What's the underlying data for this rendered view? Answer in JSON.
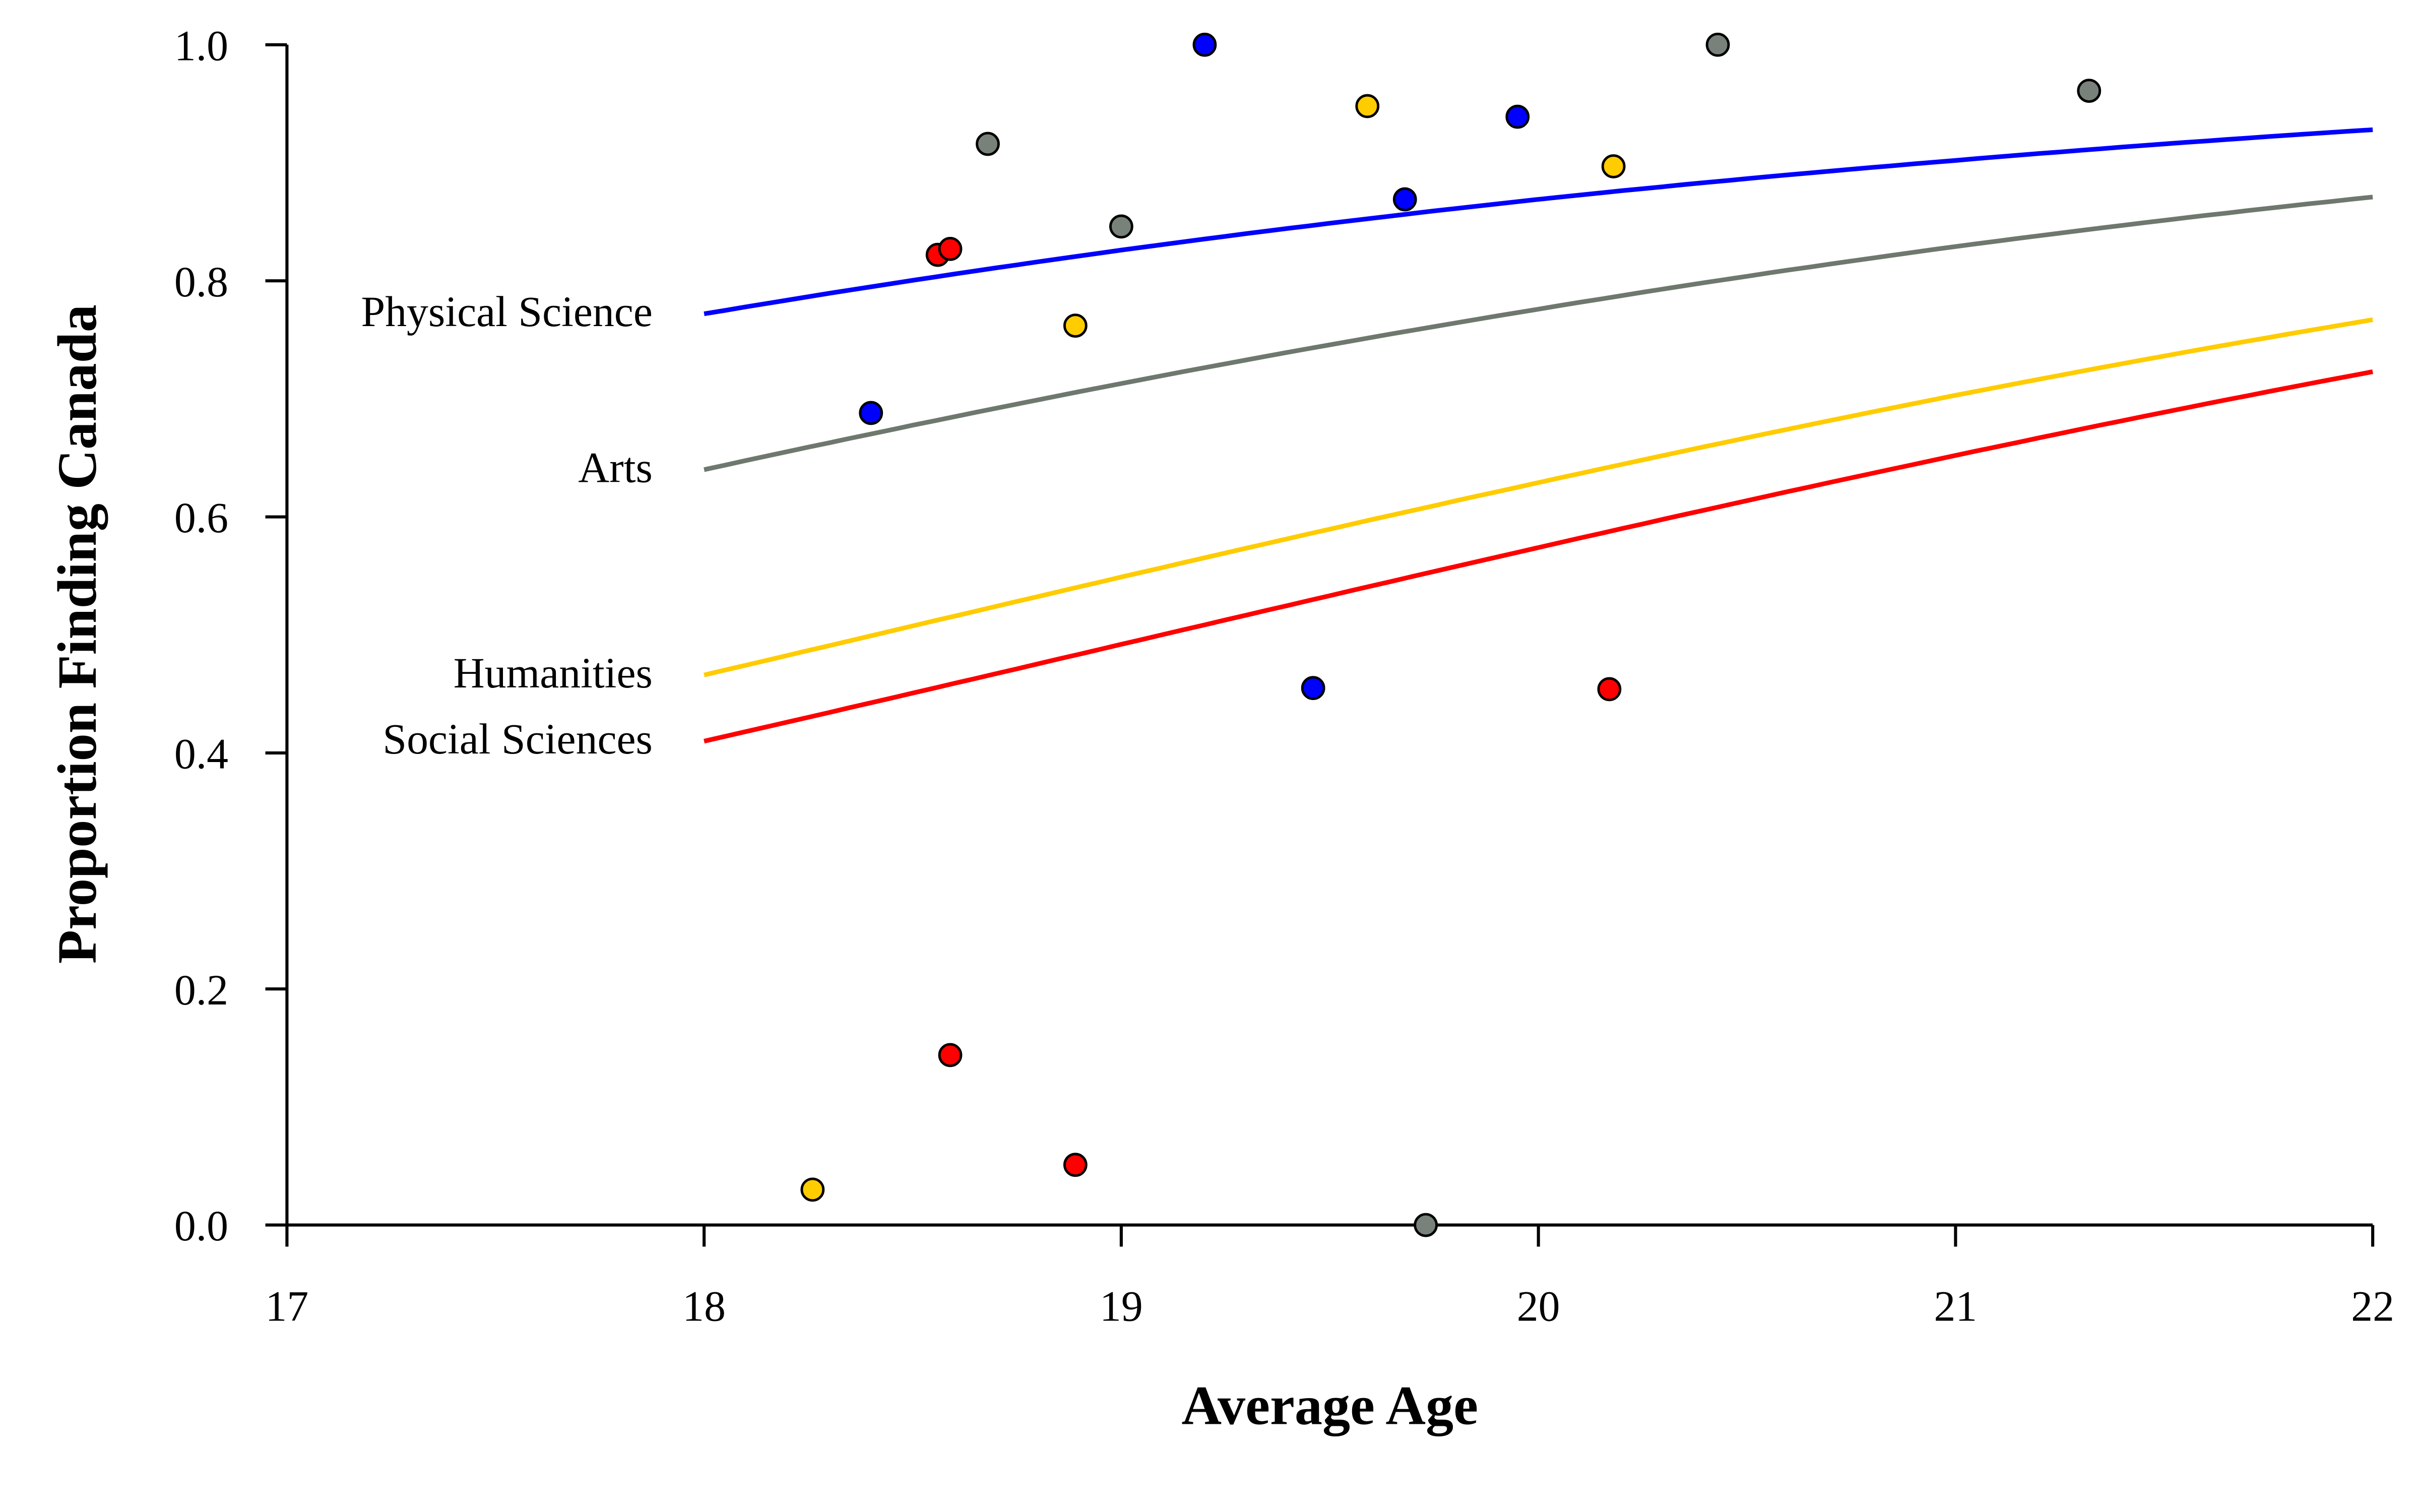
{
  "chart_data": {
    "type": "scatter",
    "title": "",
    "xlabel": "Average Age",
    "ylabel": "Proportion Finding Canada",
    "xlim": [
      17,
      22
    ],
    "ylim": [
      0,
      1
    ],
    "xticks": [
      "17",
      "18",
      "19",
      "20",
      "21",
      "22"
    ],
    "yticks": [
      "0.0",
      "0.2",
      "0.4",
      "0.6",
      "0.8",
      "1.0"
    ],
    "grid": false,
    "legend": "direct labels at left end of fitted curves",
    "series": [
      {
        "name": "Physical Science",
        "color": "#0000ff",
        "points": [
          [
            18.4,
            0.688
          ],
          [
            19.2,
            1.0
          ],
          [
            19.68,
            0.869
          ],
          [
            19.95,
            0.939
          ],
          [
            19.46,
            0.455
          ]
        ],
        "fit": {
          "x": [
            18,
            19,
            20,
            21,
            22
          ],
          "y": [
            0.772,
            0.826,
            0.869,
            0.902,
            0.928
          ]
        }
      },
      {
        "name": "Arts",
        "color": "#6e786e",
        "points": [
          [
            18.68,
            0.916
          ],
          [
            19.0,
            0.846
          ],
          [
            20.43,
            1.0
          ],
          [
            21.32,
            0.961
          ],
          [
            19.73,
            0.0
          ]
        ],
        "fit": {
          "x": [
            18,
            19,
            20,
            21,
            22
          ],
          "y": [
            0.64,
            0.713,
            0.776,
            0.829,
            0.871
          ]
        }
      },
      {
        "name": "Humanities",
        "color": "#ffcc00",
        "points": [
          [
            19.59,
            0.948
          ],
          [
            20.18,
            0.897
          ],
          [
            18.89,
            0.762
          ],
          [
            18.26,
            0.03
          ]
        ],
        "fit": {
          "x": [
            18,
            19,
            20,
            21,
            22
          ],
          "y": [
            0.466,
            0.549,
            0.629,
            0.703,
            0.767
          ]
        }
      },
      {
        "name": "Social Sciences",
        "color": "#ff0000",
        "points": [
          [
            18.56,
            0.822
          ],
          [
            18.59,
            0.827
          ],
          [
            20.17,
            0.454
          ],
          [
            18.59,
            0.144
          ],
          [
            18.89,
            0.051
          ]
        ],
        "fit": {
          "x": [
            18,
            19,
            20,
            21,
            22
          ],
          "y": [
            0.41,
            0.492,
            0.574,
            0.652,
            0.723
          ]
        }
      }
    ]
  }
}
